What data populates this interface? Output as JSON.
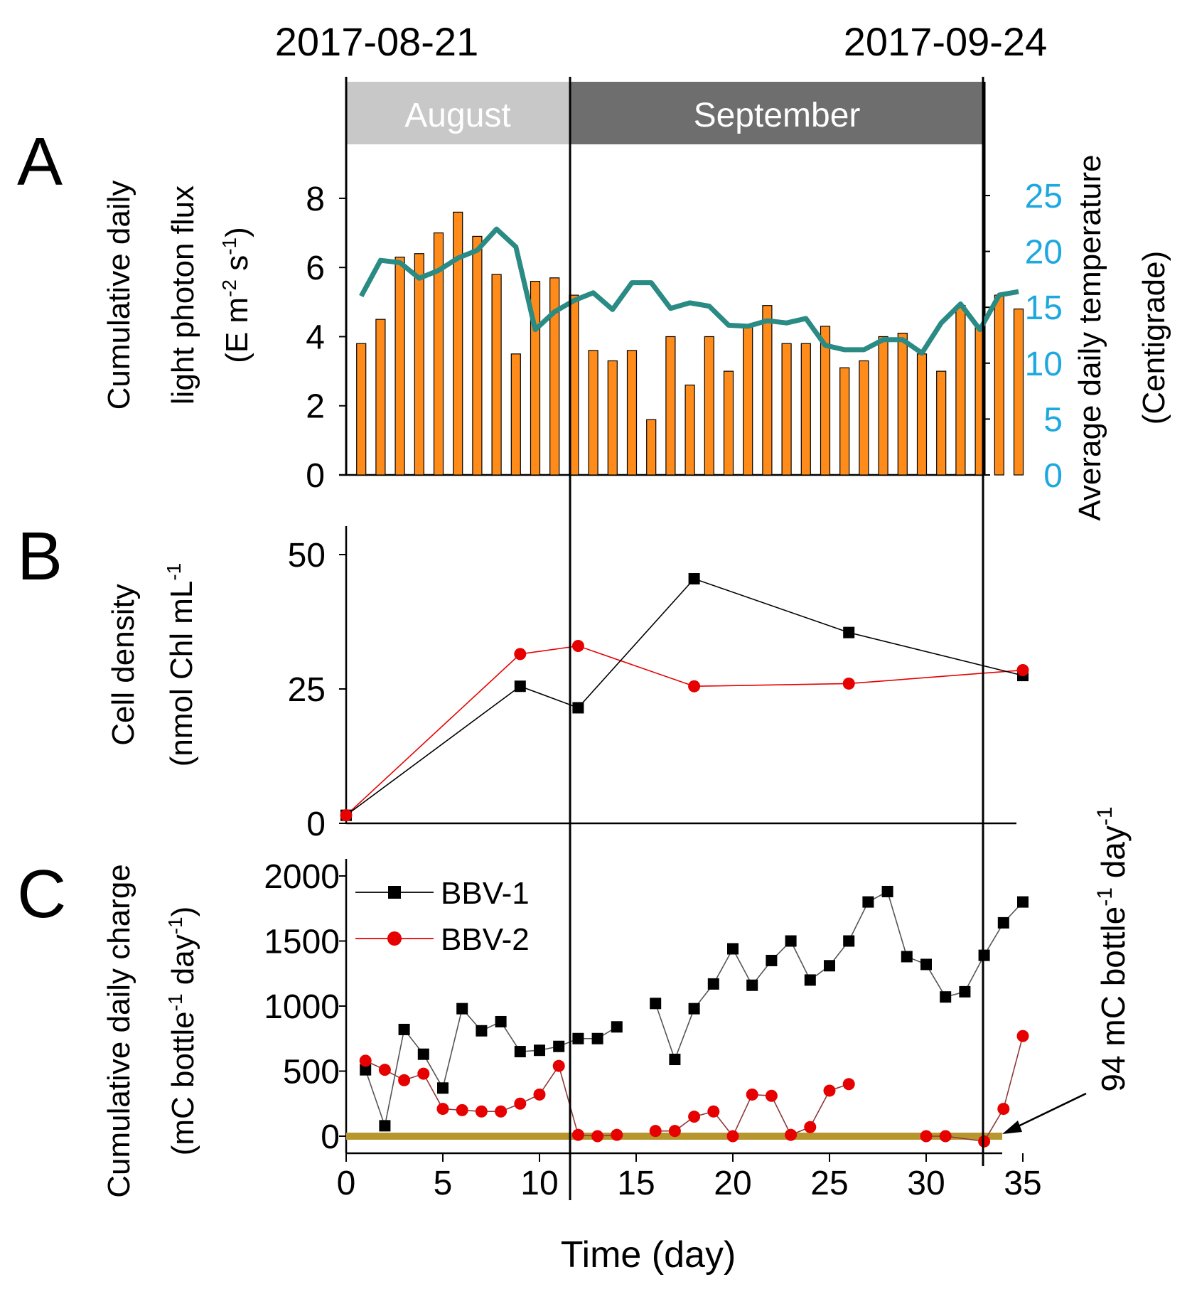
{
  "header": {
    "start_date": "2017-08-21",
    "end_date": "2017-09-24"
  },
  "months": {
    "august": "August",
    "september": "September"
  },
  "colors": {
    "bars": "#ff8c1a",
    "temperature": "#2a8a84",
    "axis_right": "#1ea8e0",
    "bbv1": "#000000",
    "bbv2": "#e60000",
    "baseline": "#b8962e",
    "august_band": "#c8c8c8",
    "september_band": "#6e6e6e"
  },
  "chart_data": [
    {
      "panel": "A",
      "type": "bar",
      "title": "A",
      "ylabel_line1": "Cumulative daily",
      "ylabel_line2": "light photon flux",
      "ylabel_line3_prefix": "(E m",
      "ylabel_line3_sup1": "-2",
      "ylabel_line3_mid": " s",
      "ylabel_line3_sup2": "-1",
      "ylabel_line3_suffix": ")",
      "y2label_line1": "Average daily temperature",
      "y2label_line2": "(Centigrade)",
      "ylim": [
        0,
        8.5
      ],
      "yticks": [
        "0",
        "2",
        "4",
        "6",
        "8"
      ],
      "y2lim": [
        0,
        26.5
      ],
      "y2ticks": [
        "0",
        "5",
        "10",
        "15",
        "20",
        "25"
      ],
      "x": [
        1,
        2,
        3,
        4,
        5,
        6,
        7,
        8,
        9,
        10,
        11,
        12,
        13,
        14,
        15,
        16,
        17,
        18,
        19,
        20,
        21,
        22,
        23,
        24,
        25,
        26,
        27,
        28,
        29,
        30,
        31,
        32,
        33,
        34,
        35
      ],
      "series": [
        {
          "name": "Cumulative daily light photon flux",
          "type": "bar",
          "values": [
            3.8,
            4.5,
            6.3,
            6.4,
            7.0,
            7.6,
            6.9,
            5.8,
            3.5,
            5.6,
            5.7,
            5.2,
            3.6,
            3.3,
            3.6,
            1.6,
            4.0,
            2.6,
            4.0,
            3.0,
            4.3,
            4.9,
            3.8,
            3.8,
            4.3,
            3.1,
            3.3,
            4.0,
            4.1,
            3.5,
            3.0,
            4.9,
            4.3,
            5.2,
            4.8
          ]
        },
        {
          "name": "Average daily temperature",
          "type": "line",
          "axis": "right",
          "values": [
            16.0,
            19.2,
            19.0,
            17.6,
            18.3,
            19.4,
            20.1,
            22.0,
            20.4,
            13.0,
            14.6,
            15.6,
            16.3,
            14.8,
            17.2,
            17.2,
            14.9,
            15.4,
            15.1,
            13.4,
            13.3,
            13.8,
            13.6,
            14.0,
            11.6,
            11.2,
            11.2,
            12.1,
            12.1,
            10.9,
            13.6,
            15.3,
            13.0,
            16.1,
            16.4
          ]
        }
      ]
    },
    {
      "panel": "B",
      "type": "line",
      "title": "B",
      "ylabel_line1": "Cell density",
      "ylabel_line2_prefix": "(nmol Chl mL",
      "ylabel_line2_sup": "-1",
      "ylabel_line2_suffix": "",
      "ylim": [
        0,
        55
      ],
      "yticks": [
        "0",
        "25",
        "50"
      ],
      "series": [
        {
          "name": "BBV-1",
          "x": [
            0,
            9,
            12,
            18,
            26,
            35
          ],
          "values": [
            1.5,
            25.5,
            21.5,
            45.5,
            35.5,
            27.5
          ]
        },
        {
          "name": "BBV-2",
          "x": [
            0,
            9,
            12,
            18,
            26,
            35
          ],
          "values": [
            1.5,
            31.5,
            33.0,
            25.5,
            26.0,
            28.5
          ]
        }
      ]
    },
    {
      "panel": "C",
      "type": "line",
      "title": "C",
      "ylabel_line1": "Cumulative daily charge",
      "ylabel_line2_prefix": "(mC bottle",
      "ylabel_line2_sup1": "-1",
      "ylabel_line2_mid": " day",
      "ylabel_line2_sup2": "-1",
      "ylabel_line2_suffix": ")",
      "xlabel": "Time (day)",
      "xlim": [
        0,
        36
      ],
      "xticks": [
        "0",
        "5",
        "10",
        "15",
        "20",
        "25",
        "30",
        "35"
      ],
      "ylim": [
        -50,
        2150
      ],
      "yticks": [
        "0",
        "500",
        "1000",
        "1500",
        "2000"
      ],
      "baseline_value": 0,
      "annotation_prefix": "94 mC bottle",
      "annotation_sup1": "-1",
      "annotation_mid": " day",
      "annotation_sup2": "-1",
      "legend": [
        "BBV-1",
        "BBV-2"
      ],
      "series": [
        {
          "name": "BBV-1",
          "segments": [
            {
              "x": [
                1,
                2,
                3,
                4,
                5,
                6,
                7,
                8,
                9,
                10,
                11,
                12,
                13,
                14
              ],
              "values": [
                510,
                80,
                820,
                630,
                370,
                980,
                810,
                880,
                650,
                660,
                690,
                750,
                750,
                840
              ]
            },
            {
              "x": [
                16,
                17,
                18,
                19,
                20,
                21,
                22,
                23,
                24,
                25,
                26,
                27,
                28,
                29,
                30,
                31,
                32,
                33,
                34,
                35
              ],
              "values": [
                1020,
                590,
                980,
                1170,
                1440,
                1160,
                1350,
                1500,
                1200,
                1310,
                1500,
                1800,
                1880,
                1380,
                1320,
                1070,
                1110,
                1390,
                1640,
                1800
              ]
            }
          ]
        },
        {
          "name": "BBV-2",
          "segments": [
            {
              "x": [
                1,
                2,
                3,
                4,
                5,
                6,
                7,
                8,
                9,
                10,
                11,
                12,
                13,
                14
              ],
              "values": [
                580,
                510,
                430,
                480,
                210,
                200,
                190,
                190,
                250,
                320,
                540,
                10,
                0,
                10
              ]
            },
            {
              "x": [
                16,
                17,
                18,
                19,
                20,
                21,
                22,
                23,
                24,
                25,
                26
              ],
              "values": [
                40,
                40,
                150,
                190,
                0,
                320,
                310,
                10,
                70,
                350,
                400
              ]
            },
            {
              "x": [
                30,
                31,
                33,
                34,
                35
              ],
              "values": [
                0,
                0,
                -40,
                210,
                770
              ]
            }
          ]
        }
      ]
    }
  ]
}
